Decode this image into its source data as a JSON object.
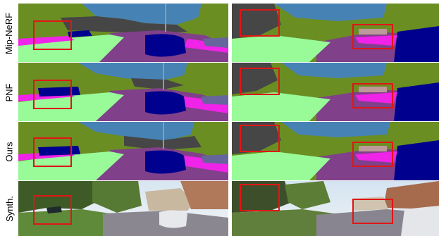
{
  "figure": {
    "rows": [
      {
        "label": "Mip-NeRF",
        "kind": "seg"
      },
      {
        "label": "PNF",
        "kind": "seg"
      },
      {
        "label": "Ours",
        "kind": "seg"
      },
      {
        "label": "Synth.",
        "kind": "photo"
      }
    ],
    "colors": {
      "sky": "#4682b4",
      "vegetation": "#6b8e23",
      "road": "#80408a",
      "sidewalk": "#f023e8",
      "terrain": "#98fb98",
      "car": "#00008e",
      "building": "#464646",
      "pole": "#999999",
      "fence": "#be9999",
      "wall": "#66669c",
      "highlight": "#e01616"
    }
  }
}
